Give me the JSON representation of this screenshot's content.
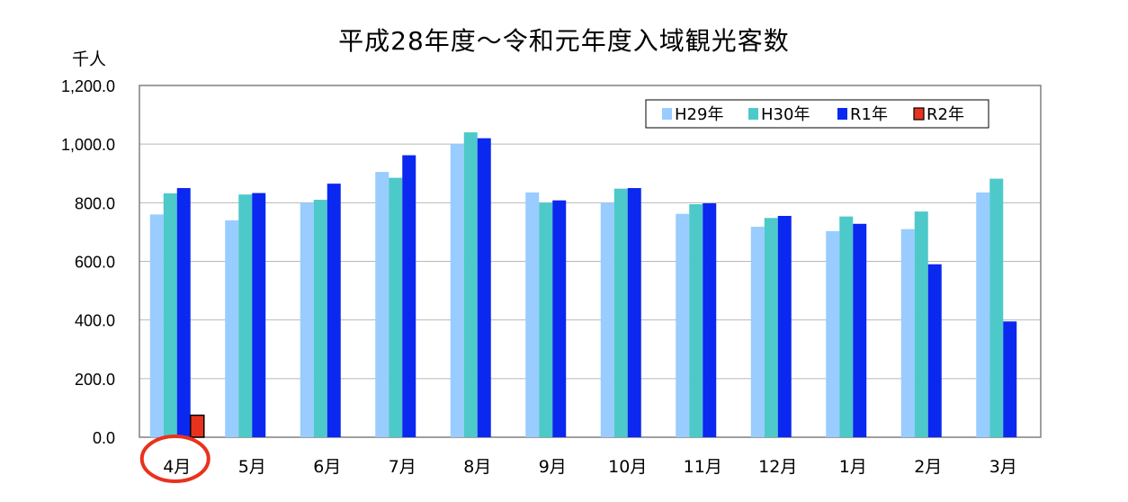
{
  "chart_data": {
    "type": "bar",
    "title": "平成28年度～令和元年度入域観光客数",
    "unit_label": "千人",
    "xlabel": "",
    "ylabel": "",
    "ylim": [
      0,
      1200
    ],
    "yticks": [
      0,
      200,
      400,
      600,
      800,
      1000,
      1200
    ],
    "ytick_labels": [
      "0.0",
      "200.0",
      "400.0",
      "600.0",
      "800.0",
      "1,000.0",
      "1,200.0"
    ],
    "grid": true,
    "legend_position": "top-right",
    "categories": [
      "4月",
      "5月",
      "6月",
      "7月",
      "8月",
      "9月",
      "10月",
      "11月",
      "12月",
      "1月",
      "2月",
      "3月"
    ],
    "series": [
      {
        "name": "H29年",
        "color": "#99ccff",
        "values": [
          760,
          740,
          800,
          905,
          1000,
          835,
          800,
          762,
          718,
          703,
          710,
          835
        ]
      },
      {
        "name": "H30年",
        "color": "#4dc9c9",
        "values": [
          832,
          828,
          810,
          885,
          1040,
          800,
          848,
          795,
          748,
          753,
          770,
          882
        ]
      },
      {
        "name": "R1年",
        "color": "#0a28f0",
        "values": [
          850,
          833,
          865,
          962,
          1020,
          808,
          850,
          798,
          755,
          728,
          590,
          395
        ]
      },
      {
        "name": "R2年",
        "color": "#e8321e",
        "values": [
          75,
          null,
          null,
          null,
          null,
          null,
          null,
          null,
          null,
          null,
          null,
          null
        ]
      }
    ],
    "highlight": {
      "category": "4月",
      "shape": "ellipse",
      "color": "#e8321e"
    }
  }
}
